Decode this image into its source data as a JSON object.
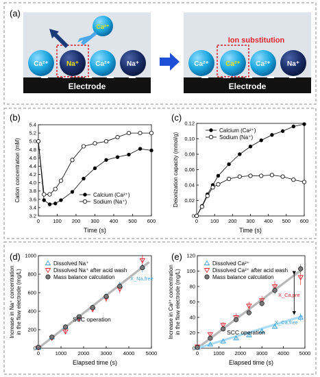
{
  "panel_a": {
    "label": "(a)",
    "incoming_ion": "Ca²⁺",
    "electrode_label": "Electrode",
    "substitution_label": "Ion substitution",
    "left_ions": [
      "Ca²⁺",
      "Na⁺",
      "Ca²⁺",
      "Na⁺"
    ],
    "right_ions": [
      "Ca²⁺",
      "Ca²⁺",
      "Ca²⁺",
      "Na⁺"
    ],
    "colors": {
      "ca": "#1fa9e0",
      "na": "#1b2f6b",
      "na_text": "#f5e400",
      "ca_text": "#f5e400",
      "highlight": "#e4222a",
      "arrow": "#1e4fd6"
    }
  },
  "chart_data": [
    {
      "id": "b",
      "type": "line",
      "panel_label": "(b)",
      "xlabel": "Time (s)",
      "ylabel": "Cation concentration (mM)",
      "xlim": [
        0,
        600
      ],
      "ylim": [
        3.2,
        5.4
      ],
      "xticks": [
        0,
        100,
        200,
        300,
        400,
        500,
        600
      ],
      "yticks": [
        3.2,
        3.4,
        3.6,
        3.8,
        4.0,
        4.2,
        4.4,
        4.6,
        4.8,
        5.0,
        5.2,
        5.4
      ],
      "ytick_labels": [
        "3.2",
        "3.4",
        "3.6",
        "3.8",
        "4.0",
        "4.2",
        "4.4",
        "4.6",
        "4.8",
        "5.0",
        "5.2",
        "5.4"
      ],
      "legend_position": "bottom-right",
      "series": [
        {
          "name": "Calcium (Ca²⁺)",
          "marker": "filled",
          "x": [
            0,
            30,
            60,
            90,
            120,
            180,
            240,
            300,
            360,
            420,
            480,
            540,
            600
          ],
          "y": [
            5.0,
            3.58,
            3.48,
            3.5,
            3.58,
            3.78,
            4.1,
            4.35,
            4.55,
            4.62,
            4.68,
            4.82,
            4.78
          ]
        },
        {
          "name": "Sodium (Na⁺)",
          "marker": "open",
          "x": [
            0,
            30,
            60,
            90,
            120,
            180,
            240,
            300,
            360,
            420,
            480,
            540,
            600
          ],
          "y": [
            5.0,
            3.72,
            3.72,
            3.85,
            4.05,
            4.55,
            4.88,
            4.95,
            5.0,
            5.1,
            5.2,
            5.2,
            5.2
          ]
        }
      ]
    },
    {
      "id": "c",
      "type": "line",
      "panel_label": "(c)",
      "xlabel": "Time (s)",
      "ylabel": "Deionization capacity (mmol/g)",
      "xlim": [
        0,
        600
      ],
      "ylim": [
        0,
        0.12
      ],
      "xticks": [
        0,
        100,
        200,
        300,
        400,
        500,
        600
      ],
      "yticks": [
        0,
        0.02,
        0.04,
        0.06,
        0.08,
        0.1,
        0.12
      ],
      "ytick_labels": [
        "0",
        "0.02",
        "0.04",
        "0.06",
        "0.08",
        "0.10",
        "0.12"
      ],
      "legend_position": "top-left",
      "series": [
        {
          "name": "Calcium (Ca²⁺)",
          "marker": "filled",
          "x": [
            0,
            30,
            60,
            90,
            120,
            180,
            240,
            300,
            360,
            420,
            480,
            540,
            600
          ],
          "y": [
            0,
            0.013,
            0.028,
            0.04,
            0.052,
            0.067,
            0.08,
            0.09,
            0.098,
            0.105,
            0.11,
            0.116,
            0.119
          ]
        },
        {
          "name": "Sodium (Na⁺)",
          "marker": "open",
          "x": [
            0,
            30,
            60,
            90,
            120,
            180,
            240,
            300,
            360,
            420,
            480,
            540,
            600
          ],
          "y": [
            0,
            0.012,
            0.026,
            0.037,
            0.041,
            0.048,
            0.051,
            0.052,
            0.052,
            0.053,
            0.051,
            0.047,
            0.044
          ]
        }
      ]
    },
    {
      "id": "d",
      "type": "scatter",
      "panel_label": "(d)",
      "xlabel": "Elapsed time (s)",
      "ylabel": "Increase in Na⁺ concentration in the flow electrode (mg/L)",
      "xlim": [
        0,
        5000
      ],
      "ylim": [
        0,
        1000
      ],
      "xticks": [
        0,
        1000,
        2000,
        3000,
        4000,
        5000
      ],
      "yticks": [
        0,
        200,
        400,
        600,
        800,
        1000
      ],
      "ytick_labels": [
        "0",
        "200",
        "400",
        "600",
        "800",
        "1000"
      ],
      "legend_position": "top-left",
      "annotation": "SCC operation",
      "pointer_label": "X_Na,free",
      "series": [
        {
          "name": "Dissolved Na⁺",
          "marker": "tri-up",
          "x": [
            0,
            600,
            1200,
            1800,
            2400,
            3000,
            3600,
            4600
          ],
          "y": [
            5,
            120,
            230,
            330,
            440,
            560,
            680,
            880
          ],
          "err": [
            0,
            20,
            25,
            25,
            30,
            35,
            40,
            60
          ]
        },
        {
          "name": "Dissolved Na⁺ after acid wash",
          "marker": "tri-down",
          "x": [
            0,
            600,
            1200,
            1800,
            2400,
            3000,
            3600,
            4600
          ],
          "y": [
            5,
            110,
            180,
            320,
            420,
            540,
            640,
            950
          ],
          "err": [
            0,
            20,
            25,
            30,
            30,
            40,
            45,
            60
          ]
        },
        {
          "name": "Mass balance calculation",
          "marker": "gray-circle",
          "x": [
            0,
            600,
            1200,
            1800,
            2400,
            3000,
            3600,
            4600
          ],
          "y": [
            10,
            120,
            230,
            340,
            440,
            560,
            670,
            870
          ],
          "err": [
            0,
            10,
            12,
            15,
            18,
            20,
            22,
            25
          ]
        }
      ],
      "fit_lines": [
        {
          "color": "gray",
          "slope": 0.19,
          "intercept": 0
        }
      ]
    },
    {
      "id": "e",
      "type": "scatter",
      "panel_label": "(e)",
      "xlabel": "Elapsed time (s)",
      "ylabel": "Increase in Ca²⁺ concentration in the flow electrode (mg/L)",
      "xlim": [
        0,
        5000
      ],
      "ylim": [
        0,
        120
      ],
      "xticks": [
        0,
        1000,
        2000,
        3000,
        4000,
        5000
      ],
      "yticks": [
        0,
        20,
        40,
        60,
        80,
        100,
        120
      ],
      "ytick_labels": [
        "0",
        "20",
        "40",
        "60",
        "80",
        "100",
        "120"
      ],
      "legend_position": "top-left",
      "annotation": "SCC operation",
      "pointer_labels": [
        "X_Ca,pre",
        "X_Ca,free"
      ],
      "series": [
        {
          "name": "Dissolved Ca²⁺",
          "marker": "tri-up",
          "x": [
            0,
            600,
            1200,
            1800,
            2400,
            3000,
            3600,
            4800
          ],
          "y": [
            1,
            5,
            9,
            13,
            17,
            22,
            28,
            40
          ],
          "err": [
            0,
            1,
            1,
            1.5,
            2,
            2,
            3,
            5
          ]
        },
        {
          "name": "Dissolved Ca²⁺ after acid wash",
          "marker": "tri-down",
          "x": [
            0,
            600,
            1200,
            1800,
            2400,
            3000,
            3600,
            4800
          ],
          "y": [
            2,
            18,
            30,
            40,
            55,
            62,
            80,
            92
          ],
          "err": [
            0,
            3,
            4,
            5,
            5,
            6,
            7,
            10
          ]
        },
        {
          "name": "Mass balance calculation",
          "marker": "gray-circle",
          "x": [
            0,
            600,
            1200,
            1800,
            2400,
            3000,
            3600,
            4800
          ],
          "y": [
            1,
            13,
            25,
            37,
            46,
            58,
            75,
            103
          ],
          "err": [
            0,
            2,
            2,
            3,
            3,
            4,
            5,
            6
          ]
        }
      ],
      "fit_lines": [
        {
          "color": "gray",
          "slope": 0.021,
          "intercept": 0
        },
        {
          "color": "lightblue",
          "slope": 0.0085,
          "intercept": 0
        }
      ]
    }
  ]
}
